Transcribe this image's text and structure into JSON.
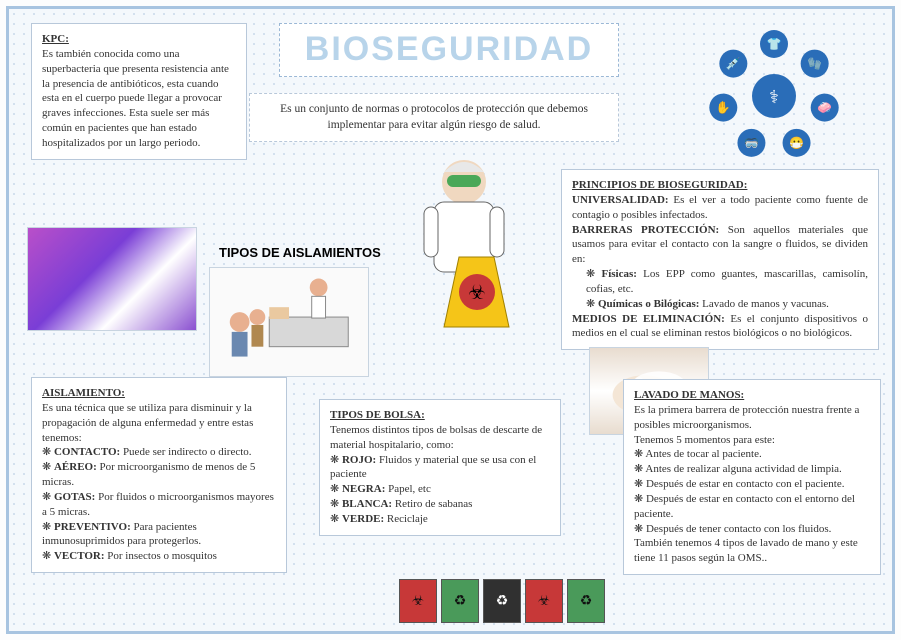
{
  "title": "BIOSEGURIDAD",
  "subtitle": "Es un conjunto de normas o protocolos de protección que debemos implementar para evitar algún riesgo de salud.",
  "kpc": {
    "heading": "KPC:",
    "body": "Es también conocida como una superbacteria que presenta resistencia ante la presencia de antibióticos, esta cuando esta en el cuerpo puede llegar a provocar graves infecciones. Esta suele ser más común en pacientes que han estado hospitalizados por un largo periodo."
  },
  "principios": {
    "heading": "PRINCIPIOS DE BIOSEGURIDAD:",
    "universalidad_label": "UNIVERSALIDAD:",
    "universalidad_text": " Es el ver a todo paciente como fuente de contagio o posibles infectados.",
    "barreras_label": "BARRERAS PROTECCIÓN:",
    "barreras_text": " Son aquellos materiales que usamos para evitar el contacto con la sangre o fluidos, se dividen en:",
    "fisicas_label": "Físicas:",
    "fisicas_text": " Los EPP como guantes, mascarillas, camisolín, cofias, etc.",
    "quimicas_label": "Químicas o Bilógicas:",
    "quimicas_text": " Lavado de manos y vacunas.",
    "medios_label": "MEDIOS DE ELIMINACIÓN:",
    "medios_text": " Es el conjunto dispositivos o medios en el cual se eliminan restos biológicos o no biológicos."
  },
  "aislamiento": {
    "heading": "AISLAMIENTO:",
    "intro": "Es una técnica que se utiliza para disminuir y la propagación de alguna enfermedad y entre estas tenemos:",
    "items": [
      {
        "label": "CONTACTO:",
        "text": " Puede ser indirecto o directo."
      },
      {
        "label": "AÉREO:",
        "text": " Por microorganismo de menos de 5 micras."
      },
      {
        "label": "GOTAS:",
        "text": " Por fluidos o microorganismos mayores a 5 micras."
      },
      {
        "label": "PREVENTIVO:",
        "text": " Para pacientes inmunosuprimidos para protegerlos."
      },
      {
        "label": "VECTOR:",
        "text": " Por insectos o mosquitos"
      }
    ]
  },
  "tipos_aislamientos_title": "TIPOS DE AISLAMIENTOS",
  "tipos_bolsa": {
    "heading": "TIPOS DE BOLSA:",
    "intro": "Tenemos distintos tipos de bolsas de descarte de material hospitalario, como:",
    "items": [
      {
        "label": "ROJO:",
        "text": " Fluidos y material que se usa con el paciente"
      },
      {
        "label": "NEGRA:",
        "text": " Papel, etc"
      },
      {
        "label": "BLANCA:",
        "text": " Retiro de sabanas"
      },
      {
        "label": "VERDE:",
        "text": " Reciclaje"
      }
    ]
  },
  "lavado": {
    "heading": "LAVADO DE MANOS:",
    "intro": "Es la primera barrera de protección nuestra frente a posibles microorganismos.",
    "sub": "Tenemos 5 momentos para este:",
    "items": [
      "Antes de tocar al paciente.",
      "Antes de realizar alguna actividad de limpia.",
      "Después de estar en contacto con el paciente.",
      "Después de estar en contacto con el entorno del paciente.",
      "Después de tener contacto con los fluidos."
    ],
    "footer": "También tenemos 4 tipos de lavado de mano y este tiene 11 pasos según la OMS.."
  },
  "bags": [
    {
      "color": "#c73838",
      "glyph": "☣"
    },
    {
      "color": "#4a9a5a",
      "glyph": "♻"
    },
    {
      "color": "#303030",
      "glyph": "♻"
    },
    {
      "color": "#c73838",
      "glyph": "☣"
    },
    {
      "color": "#4a9a5a",
      "glyph": "♻"
    }
  ],
  "icon_ring": [
    "👕",
    "🧤",
    "🧼",
    "😷",
    "🥽",
    "✋",
    "💉",
    "👨‍⚕️"
  ],
  "colors": {
    "border": "#a8c4e0",
    "box_border": "#b8c8da",
    "title_text": "#b8d4ea",
    "dot_bg": "#c8d8ea"
  }
}
